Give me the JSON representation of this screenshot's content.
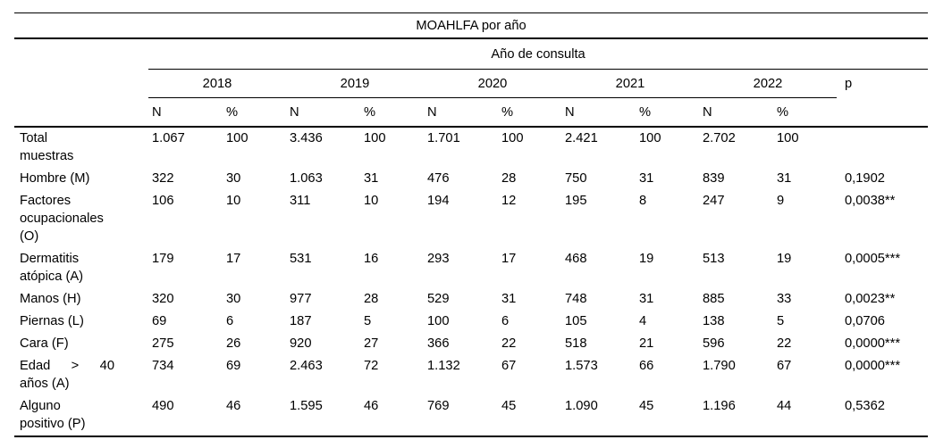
{
  "table": {
    "title": "MOAHLFA por año",
    "group_header": "Año de consulta",
    "years": [
      "2018",
      "2019",
      "2020",
      "2021",
      "2022"
    ],
    "sub_headers": [
      "N",
      "%"
    ],
    "p_label": "p",
    "rows": [
      {
        "label": "Total muestras",
        "label_lines": [
          "Total",
          "muestras"
        ],
        "label_justify_line": -1,
        "values": [
          "1.067",
          "100",
          "3.436",
          "100",
          "1.701",
          "100",
          "2.421",
          "100",
          "2.702",
          "100"
        ],
        "p": ""
      },
      {
        "label": "Hombre (M)",
        "label_lines": [
          "Hombre (M)"
        ],
        "label_justify_line": -1,
        "values": [
          "322",
          "30",
          "1.063",
          "31",
          "476",
          "28",
          "750",
          "31",
          "839",
          "31"
        ],
        "p": "0,1902"
      },
      {
        "label": "Factores ocupacionales (O)",
        "label_lines": [
          "Factores",
          "ocupacionales",
          "(O)"
        ],
        "label_justify_line": -1,
        "values": [
          "106",
          "10",
          "311",
          "10",
          "194",
          "12",
          "195",
          "8",
          "247",
          "9"
        ],
        "p": "0,0038**"
      },
      {
        "label": "Dermatitis atópica (A)",
        "label_lines": [
          "Dermatitis",
          "atópica (A)"
        ],
        "label_justify_line": -1,
        "values": [
          "179",
          "17",
          "531",
          "16",
          "293",
          "17",
          "468",
          "19",
          "513",
          "19"
        ],
        "p": "0,0005***"
      },
      {
        "label": "Manos (H)",
        "label_lines": [
          "Manos (H)"
        ],
        "label_justify_line": -1,
        "values": [
          "320",
          "30",
          "977",
          "28",
          "529",
          "31",
          "748",
          "31",
          "885",
          "33"
        ],
        "p": "0,0023**"
      },
      {
        "label": "Piernas (L)",
        "label_lines": [
          "Piernas (L)"
        ],
        "label_justify_line": -1,
        "values": [
          "69",
          "6",
          "187",
          "5",
          "100",
          "6",
          "105",
          "4",
          "138",
          "5"
        ],
        "p": "0,0706"
      },
      {
        "label": "Cara (F)",
        "label_lines": [
          "Cara (F)"
        ],
        "label_justify_line": -1,
        "values": [
          "275",
          "26",
          "920",
          "27",
          "366",
          "22",
          "518",
          "21",
          "596",
          "22"
        ],
        "p": "0,0000***"
      },
      {
        "label": "Edad > 40 años (A)",
        "label_lines": [
          "Edad > 40",
          "años (A)"
        ],
        "label_justify_line": 0,
        "values": [
          "734",
          "69",
          "2.463",
          "72",
          "1.132",
          "67",
          "1.573",
          "66",
          "1.790",
          "67"
        ],
        "p": "0,0000***"
      },
      {
        "label": "Alguno positivo (P)",
        "label_lines": [
          "Alguno",
          "positivo (P)"
        ],
        "label_justify_line": -1,
        "values": [
          "490",
          "46",
          "1.595",
          "46",
          "769",
          "45",
          "1.090",
          "45",
          "1.196",
          "44"
        ],
        "p": "0,5362"
      }
    ]
  }
}
